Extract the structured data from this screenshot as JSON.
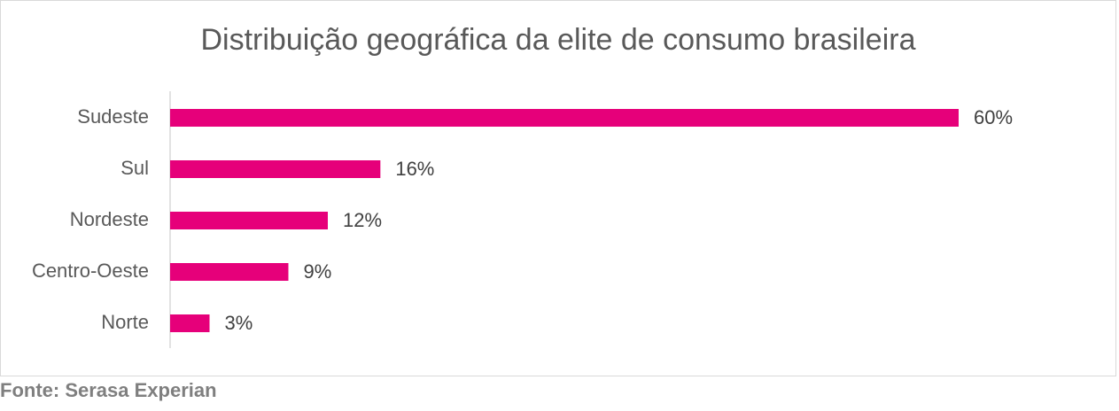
{
  "chart_data": {
    "type": "bar",
    "orientation": "horizontal",
    "title": "Distribuição geográfica da elite de consumo brasileira",
    "categories": [
      "Sudeste",
      "Sul",
      "Nordeste",
      "Centro-Oeste",
      "Norte"
    ],
    "values": [
      60,
      16,
      12,
      9,
      3
    ],
    "value_labels": [
      "60%",
      "16%",
      "12%",
      "9%",
      "3%"
    ],
    "color": "#e6007a",
    "source": "Fonte: Serasa Experian"
  }
}
